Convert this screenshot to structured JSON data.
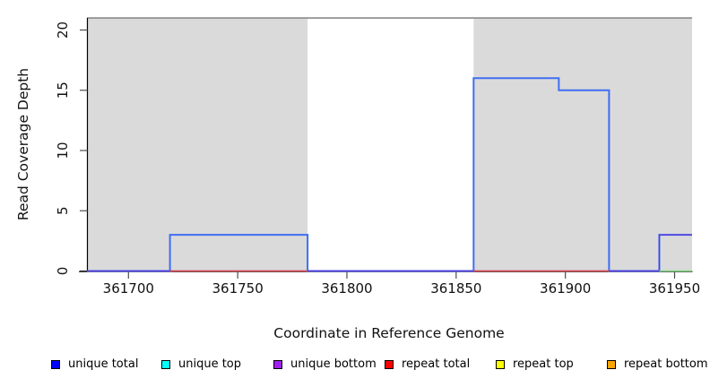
{
  "chart_data": {
    "type": "step",
    "title": "",
    "xlabel": "Coordinate in Reference Genome",
    "ylabel": "Read Coverage Depth",
    "xlim": [
      361681,
      361958
    ],
    "ylim": [
      0,
      21
    ],
    "x_ticks": [
      361700,
      361750,
      361800,
      361850,
      361900,
      361950
    ],
    "x_tick_labels": [
      "361700",
      "361750",
      "361800",
      "361850",
      "361900",
      "361950"
    ],
    "y_ticks": [
      0,
      5,
      10,
      15,
      20
    ],
    "y_tick_labels": [
      "0",
      "5",
      "10",
      "15",
      "20"
    ],
    "grid": false,
    "plot_background": "#ffffff",
    "masked_region_color": "#dadada",
    "masked_regions_x": [
      [
        361681,
        361782
      ],
      [
        361858,
        361958
      ]
    ],
    "mask_top_value": 21,
    "mask_top_line_color": "#8a8a8a",
    "axis_color": "#000000",
    "tick_color": "#4d4d4d",
    "render_series": [
      {
        "name": "unique total",
        "color": "#3f6ef2",
        "width": 2,
        "steps": [
          [
            361681,
            0
          ],
          [
            361719,
            3
          ],
          [
            361782,
            0
          ],
          [
            361858,
            16
          ],
          [
            361897,
            15
          ],
          [
            361920,
            0
          ],
          [
            361943,
            3
          ]
        ],
        "end": 361958
      },
      {
        "name": "unique bottom",
        "color": "#5837e0",
        "width": 1.3,
        "steps": [
          [
            361681,
            0
          ],
          [
            361943,
            3
          ]
        ],
        "end": 361958
      },
      {
        "name": "repeat total",
        "color": "#e04848",
        "width": 1.6,
        "y0_segments": [
          [
            361719,
            361782
          ],
          [
            361858,
            361920
          ]
        ]
      },
      {
        "name": "unique top",
        "color": "#84d884",
        "width": 1.6,
        "y0_segments": [
          [
            361943,
            361958
          ]
        ]
      }
    ],
    "legend": {
      "position": "bottom",
      "entries": [
        {
          "label": "unique total",
          "color": "#0000ff"
        },
        {
          "label": "unique top",
          "color": "#00ffff"
        },
        {
          "label": "unique bottom",
          "color": "#a020f0"
        },
        {
          "label": "repeat total",
          "color": "#ff0000"
        },
        {
          "label": "repeat top",
          "color": "#ffff00"
        },
        {
          "label": "repeat bottom",
          "color": "#ffa500"
        }
      ]
    }
  }
}
